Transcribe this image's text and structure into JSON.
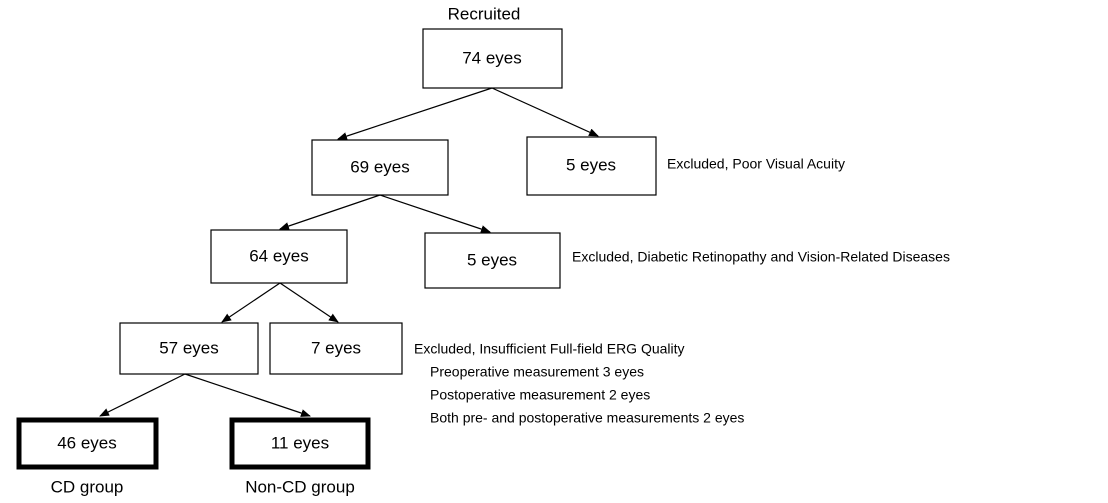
{
  "top_label": "Recruited",
  "nodes": [
    {
      "label": "74 eyes"
    },
    {
      "label": "69 eyes"
    },
    {
      "label": "5 eyes"
    },
    {
      "label": "64 eyes"
    },
    {
      "label": "5 eyes"
    },
    {
      "label": "57 eyes"
    },
    {
      "label": "7 eyes"
    },
    {
      "label": "46 eyes"
    },
    {
      "label": "11 eyes"
    }
  ],
  "exclusions": [
    {
      "text": "Excluded, Poor Visual Acuity"
    },
    {
      "text": "Excluded, Diabetic Retinopathy and Vision-Related Diseases"
    },
    {
      "text": "Excluded, Insufficient Full-field ERG Quality",
      "details": [
        "Preoperative measurement 3 eyes",
        "Postoperative measurement 2 eyes",
        "Both pre- and postoperative measurements 2 eyes"
      ]
    }
  ],
  "groups": [
    "CD group",
    "Non-CD group"
  ]
}
